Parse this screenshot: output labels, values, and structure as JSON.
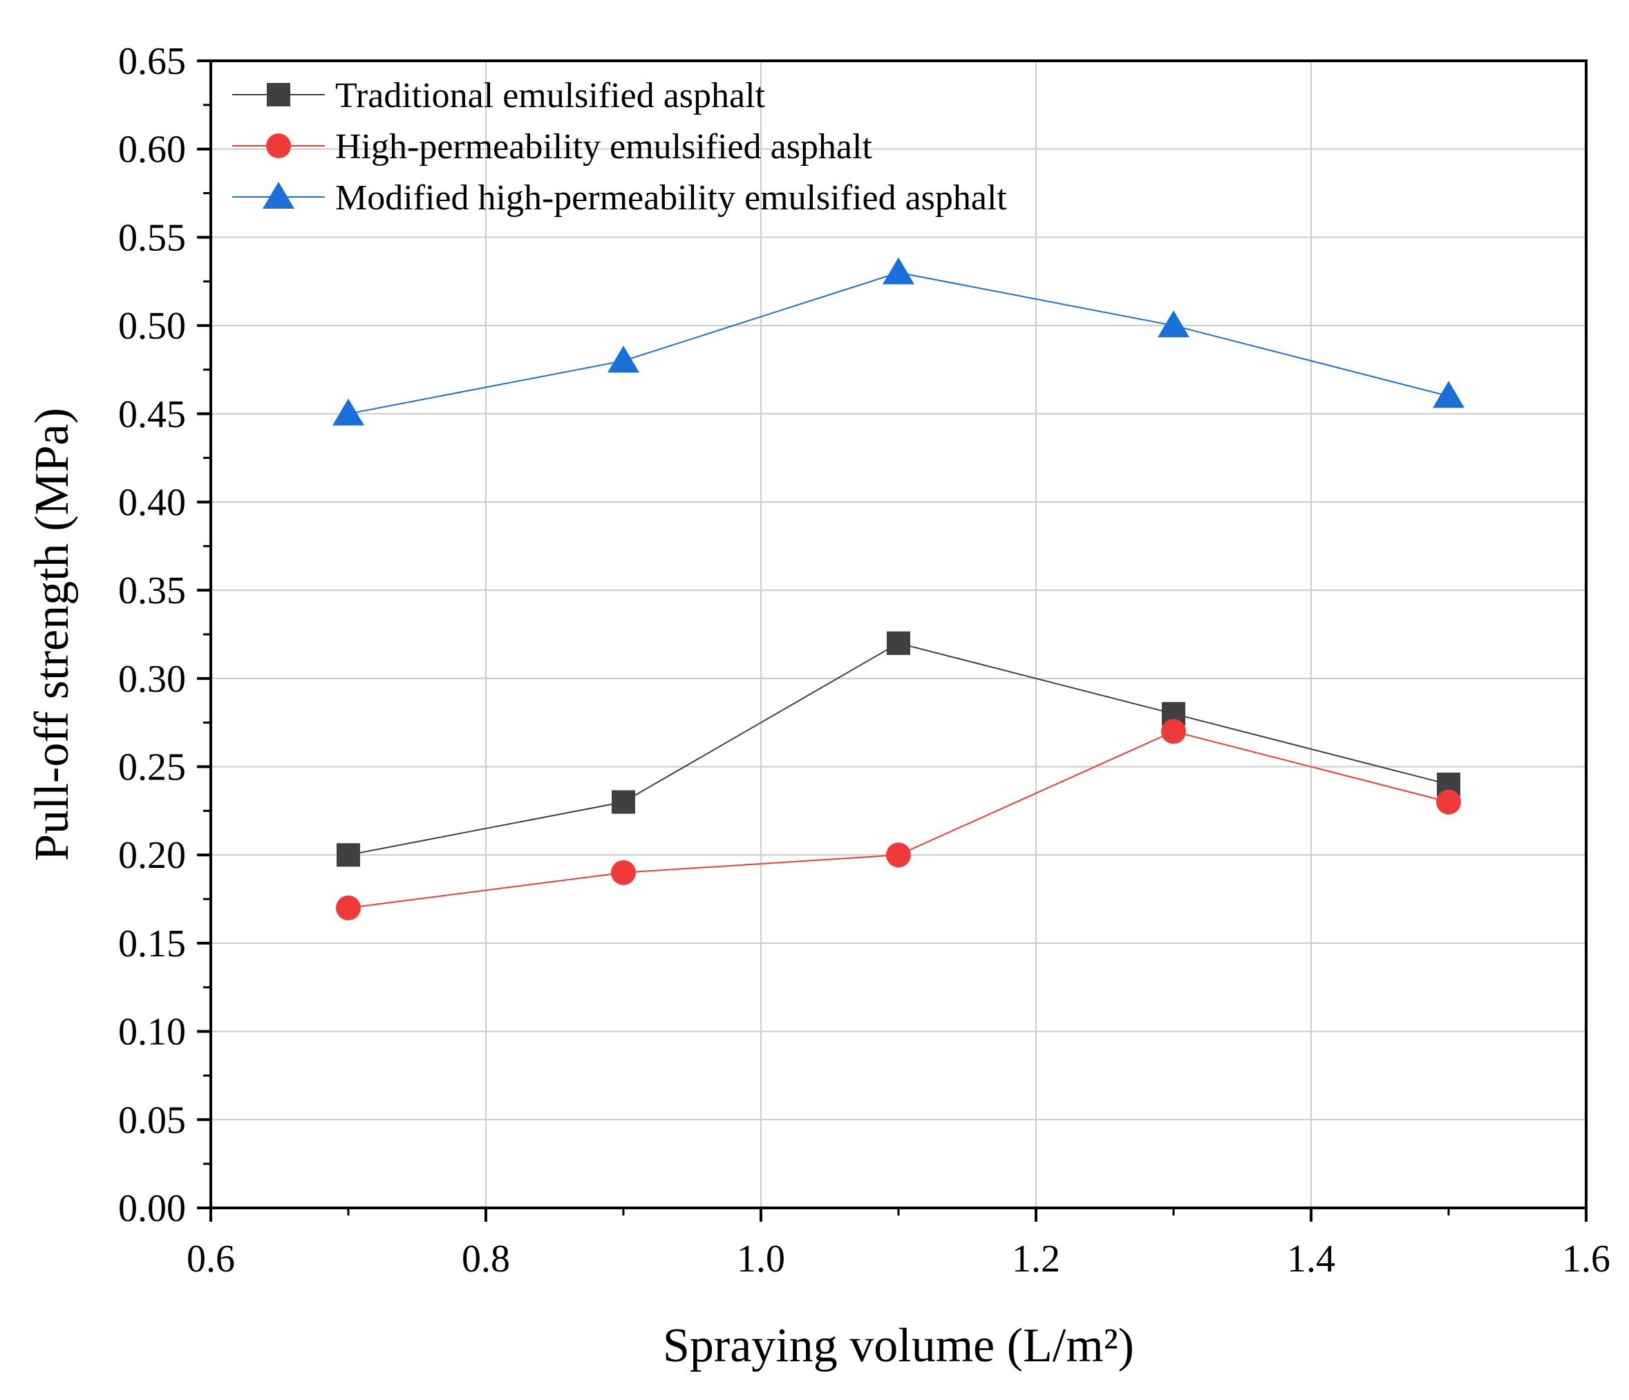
{
  "chart_data": {
    "type": "line",
    "xlabel": "Spraying volume (L/m²)",
    "ylabel": "Pull-off strength (MPa)",
    "xlim": [
      0.6,
      1.6
    ],
    "ylim": [
      0.0,
      0.65
    ],
    "xticks": [
      "0.6",
      "0.8",
      "1.0",
      "1.2",
      "1.4",
      "1.6"
    ],
    "yticks": [
      "0.00",
      "0.05",
      "0.10",
      "0.15",
      "0.20",
      "0.25",
      "0.30",
      "0.35",
      "0.40",
      "0.45",
      "0.50",
      "0.55",
      "0.60",
      "0.65"
    ],
    "grid": true,
    "legend_position": "top-left",
    "x": [
      0.7,
      0.9,
      1.1,
      1.3,
      1.5
    ],
    "series": [
      {
        "name": "Traditional emulsified asphalt",
        "marker": "square",
        "color": "#404040",
        "values": [
          0.2,
          0.23,
          0.32,
          0.28,
          0.24
        ]
      },
      {
        "name": "High-permeability emulsified asphalt",
        "marker": "circle",
        "color": "#f03a3a",
        "values": [
          0.17,
          0.19,
          0.2,
          0.27,
          0.23
        ]
      },
      {
        "name": "Modified high-permeability emulsified asphalt",
        "marker": "triangle",
        "color": "#1a6fd9",
        "values": [
          0.45,
          0.48,
          0.53,
          0.5,
          0.46
        ]
      }
    ]
  }
}
